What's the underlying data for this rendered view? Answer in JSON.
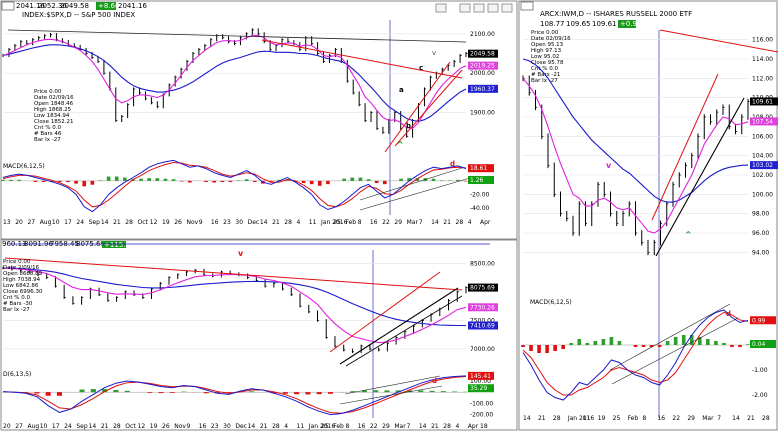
{
  "colors": {
    "price": "#000000",
    "ma_fast": "#e020e0",
    "ma_slow": "#1a1acc",
    "trend": "#e01010",
    "macd_line": "#1a1acc",
    "macd_signal": "#e01010",
    "hist_pos": "#2e9e2e",
    "hist_neg": "#e01010",
    "vline": "#3030c0",
    "axis_badge_red": "#e01010",
    "axis_badge_green": "#10a010",
    "axis_badge_blue": "#2020d0",
    "axis_badge_pink": "#e040e0",
    "axis_badge_black": "#000000",
    "toolbar_green": "#1a9a1a"
  },
  "charts": [
    {
      "id": "spx",
      "header": {
        "title": "INDEX:$SPX,D -- S&P 500 INDEX",
        "fields": [
          "2041.16",
          "2052.36",
          "2049.58",
          "2041.16"
        ],
        "change": "+8.66"
      },
      "info_box": [
        "Price  0.00",
        "Date  02/09/16",
        "Open  1848.46",
        "High  1868.25",
        "Low  1834.94",
        "Close  1852.21",
        "Cnt % 0.0",
        "# Bars 46",
        "Bar Ix -27"
      ],
      "y_ticks": [
        "2100.00",
        "2000.00",
        "1900.00"
      ],
      "badges": [
        {
          "text": "2049.58",
          "kind": "black"
        },
        {
          "text": "2019.25",
          "kind": "pink"
        },
        {
          "text": "1960.37",
          "kind": "blue"
        }
      ],
      "annotations": [
        "v",
        "c",
        "a",
        "b",
        "^"
      ],
      "macd": {
        "label": "MACD(6,12,5)",
        "y_ticks": [
          "0.00",
          "-20.00",
          "-40.00"
        ],
        "badges": [
          {
            "text": "18.61",
            "kind": "red"
          },
          {
            "text": "1.26",
            "kind": "green"
          }
        ],
        "annotation": "d"
      },
      "x_labels": [
        "13",
        "20",
        "27",
        "Aug",
        "10",
        "17",
        "24",
        "Sep",
        "14",
        "21",
        "28",
        "Oct",
        "12",
        "19",
        "26",
        "Nov",
        "9",
        "16",
        "23",
        "30",
        "Dec",
        "14",
        "21",
        "28",
        "4",
        "11",
        "Jan 2016",
        "25",
        "Feb",
        "8",
        "16",
        "22",
        "29",
        "Mar",
        "7",
        "14",
        "21",
        "28",
        "4",
        "Apr"
      ],
      "price": [
        2045,
        2060,
        2070,
        2080,
        2075,
        2085,
        2090,
        2095,
        2098,
        2085,
        2080,
        2072,
        2068,
        2060,
        2050,
        2040,
        2030,
        2000,
        1960,
        1880,
        1890,
        1920,
        1960,
        1950,
        1935,
        1925,
        1915,
        1945,
        1970,
        1990,
        2010,
        2030,
        2050,
        2060,
        2070,
        2085,
        2095,
        2090,
        2080,
        2075,
        2090,
        2100,
        2110,
        2100,
        2080,
        2060,
        2070,
        2085,
        2080,
        2075,
        2060,
        2090,
        2075,
        2050,
        2030,
        2045,
        2060,
        2030,
        1980,
        1950,
        1920,
        1880,
        1900,
        1860,
        1850,
        1880,
        1900,
        1860,
        1840,
        1880,
        1920,
        1960,
        1990,
        2000,
        2010,
        2020,
        2030,
        2045,
        2050
      ],
      "ma_fast": [
        2045,
        2050,
        2058,
        2065,
        2072,
        2078,
        2082,
        2085,
        2086,
        2084,
        2080,
        2074,
        2066,
        2058,
        2045,
        2030,
        2010,
        1985,
        1960,
        1935,
        1925,
        1930,
        1940,
        1945,
        1945,
        1942,
        1938,
        1945,
        1958,
        1975,
        1995,
        2015,
        2032,
        2045,
        2058,
        2068,
        2078,
        2082,
        2083,
        2081,
        2083,
        2090,
        2096,
        2096,
        2090,
        2078,
        2072,
        2075,
        2077,
        2076,
        2068,
        2072,
        2070,
        2060,
        2045,
        2042,
        2045,
        2040,
        2020,
        1995,
        1970,
        1940,
        1925,
        1905,
        1888,
        1880,
        1882,
        1875,
        1862,
        1860,
        1875,
        1900,
        1925,
        1950,
        1970,
        1985,
        1998,
        2012,
        2019
      ],
      "ma_slow": [
        2045,
        2048,
        2052,
        2056,
        2060,
        2064,
        2067,
        2070,
        2072,
        2072,
        2071,
        2069,
        2066,
        2062,
        2057,
        2050,
        2042,
        2032,
        2020,
        2005,
        1990,
        1978,
        1968,
        1962,
        1958,
        1955,
        1952,
        1952,
        1955,
        1958,
        1963,
        1970,
        1978,
        1988,
        1998,
        2008,
        2018,
        2026,
        2032,
        2036,
        2040,
        2045,
        2050,
        2054,
        2056,
        2055,
        2053,
        2053,
        2053,
        2052,
        2050,
        2050,
        2048,
        2045,
        2040,
        2036,
        2033,
        2030,
        2022,
        2010,
        1996,
        1980,
        1965,
        1948,
        1930,
        1915,
        1905,
        1895,
        1885,
        1880,
        1878,
        1882,
        1890,
        1902,
        1915,
        1928,
        1940,
        1952,
        1960
      ],
      "macd_line": [
        5,
        8,
        10,
        8,
        5,
        2,
        -1,
        -5,
        -10,
        -20,
        -38,
        -45,
        -35,
        -20,
        -10,
        -2,
        5,
        12,
        20,
        25,
        28,
        30,
        25,
        20,
        22,
        18,
        12,
        8,
        5,
        10,
        15,
        8,
        -2,
        -5,
        0,
        5,
        -2,
        -10,
        -20,
        -35,
        -42,
        -38,
        -30,
        -20,
        -10,
        -5,
        -15,
        -25,
        -20,
        -10,
        0,
        8,
        15,
        20,
        18,
        20,
        22,
        18
      ],
      "macd_signal": [
        3,
        6,
        8,
        8,
        7,
        4,
        1,
        -3,
        -8,
        -15,
        -28,
        -38,
        -36,
        -28,
        -18,
        -8,
        2,
        8,
        15,
        20,
        24,
        27,
        26,
        23,
        22,
        20,
        15,
        10,
        7,
        9,
        12,
        10,
        3,
        -2,
        -2,
        2,
        0,
        -6,
        -14,
        -26,
        -36,
        -38,
        -34,
        -26,
        -16,
        -8,
        -11,
        -19,
        -20,
        -14,
        -5,
        3,
        10,
        16,
        17,
        19,
        20,
        19
      ]
    },
    {
      "id": "iwm",
      "header": {
        "title": "ARCX:IWM,D -- ISHARES RUSSELL 2000 ETF",
        "fields": [
          "108.77",
          "109.65",
          "109.61"
        ],
        "change": "+0.98"
      },
      "info_box": [
        "Price  0.00",
        "Date  02/09/16",
        "Open  95.13",
        "High  97.13",
        "Low  95.02",
        "Close  95.78",
        "Cnt % 0.0",
        "# Bars -21",
        "Bar Ix -27"
      ],
      "y_ticks": [
        "116.00",
        "114.00",
        "112.00",
        "110.00",
        "108.00",
        "106.00",
        "104.00",
        "102.00",
        "100.00",
        "98.00",
        "96.00",
        "94.00"
      ],
      "badges": [
        {
          "text": "109.61",
          "kind": "black"
        },
        {
          "text": "107.54",
          "kind": "pink"
        },
        {
          "text": "103.02",
          "kind": "blue"
        }
      ],
      "annotations": [
        "v",
        "^"
      ],
      "macd": {
        "label": "MACD(6,12,5)",
        "y_ticks": [
          "1.00",
          "0.00",
          "-1.00",
          "-2.00"
        ],
        "badges": [
          {
            "text": "0.99",
            "kind": "red"
          },
          {
            "text": "0.04",
            "kind": "green"
          }
        ],
        "annotation": "d"
      },
      "x_labels": [
        "14",
        "21",
        "28",
        "Jan 2016",
        "11",
        "19",
        "25",
        "Feb",
        "8",
        "16",
        "22",
        "29",
        "Mar",
        "7",
        "14",
        "21",
        "28"
      ],
      "price": [
        112,
        110.5,
        109,
        106,
        103,
        100,
        98,
        97.5,
        96,
        99,
        97,
        99,
        101,
        100,
        98,
        97,
        98,
        99,
        96,
        95,
        94,
        95,
        97,
        99,
        101,
        102,
        103,
        104,
        106,
        108,
        107.5,
        108.5,
        109,
        107,
        106.5,
        108,
        109.6
      ],
      "ma_fast": [
        112,
        111.2,
        110.2,
        108.8,
        107,
        105,
        103.2,
        101.6,
        100,
        99.6,
        98.8,
        98.8,
        99.4,
        99.6,
        99.2,
        98.6,
        98.4,
        98.6,
        97.8,
        97,
        96.2,
        96,
        96.4,
        97.2,
        98.4,
        99.6,
        100.8,
        102,
        103.6,
        105.2,
        106.2,
        107.2,
        108,
        107.8,
        107.2,
        107.3,
        107.5
      ],
      "ma_slow": [
        114,
        113.8,
        113.4,
        112.8,
        112,
        111,
        110,
        109,
        108,
        107.2,
        106.4,
        105.6,
        105,
        104.4,
        103.8,
        103.2,
        102.6,
        102.2,
        101.6,
        101,
        100.4,
        99.8,
        99.4,
        99.2,
        99.2,
        99.4,
        99.8,
        100.2,
        100.8,
        101.4,
        101.9,
        102.3,
        102.6,
        102.8,
        102.9,
        103,
        103.02
      ],
      "macd_line": [
        -0.3,
        -0.8,
        -1.4,
        -1.9,
        -2.1,
        -2.2,
        -1.9,
        -1.5,
        -1.6,
        -1.3,
        -1.0,
        -0.6,
        -0.7,
        -1.0,
        -1.2,
        -1.3,
        -1.5,
        -1.6,
        -1.2,
        -0.7,
        -0.1,
        0.4,
        0.8,
        1.1,
        1.3,
        1.4,
        1.1,
        0.9,
        0.99
      ],
      "macd_signal": [
        -0.2,
        -0.5,
        -1.0,
        -1.5,
        -1.8,
        -2.0,
        -2.0,
        -1.8,
        -1.7,
        -1.5,
        -1.3,
        -1.0,
        -0.9,
        -1.0,
        -1.1,
        -1.2,
        -1.4,
        -1.5,
        -1.4,
        -1.1,
        -0.6,
        -0.1,
        0.4,
        0.8,
        1.1,
        1.3,
        1.2,
        1.0,
        0.95
      ]
    },
    {
      "id": "nya",
      "header": {
        "title": "",
        "fields": [
          "960.13",
          "8091.96",
          "7958.45",
          "8075.69"
        ],
        "change": "+115.74"
      },
      "info_box": [
        "Price  0.00",
        "Date  2/09/16",
        "Open  8668.89",
        "High  7038.94",
        "Low  6842.86",
        "Close  6996.30",
        "Cnt % 0.0",
        "# Bars -30",
        "Bar Ix -27"
      ],
      "y_ticks": [
        "8500.00",
        "7500.00",
        "7000.00"
      ],
      "badges": [
        {
          "text": "8075.69",
          "kind": "black"
        },
        {
          "text": "7730.26",
          "kind": "pink"
        },
        {
          "text": "7410.69",
          "kind": "blue"
        }
      ],
      "annotations": [
        "v"
      ],
      "macd": {
        "label": "D(6,13,5)",
        "y_ticks": [
          "100.00",
          "-100.00",
          "-200.00"
        ],
        "badges": [
          {
            "text": "145.41",
            "kind": "red"
          },
          {
            "text": "35.29",
            "kind": "green"
          }
        ],
        "annotation": "d"
      },
      "x_labels": [
        "20",
        "27",
        "Aug",
        "10",
        "17",
        "24",
        "Sep",
        "14",
        "21",
        "28",
        "Oct",
        "12",
        "19",
        "26",
        "Nov",
        "9",
        "16",
        "23",
        "30",
        "Dec",
        "14",
        "21",
        "28",
        "4",
        "11",
        "Jan 2016",
        "25",
        "Feb",
        "8",
        "16",
        "22",
        "29",
        "Mar",
        "7",
        "14",
        "21",
        "28",
        "4",
        "Apr",
        "18"
      ],
      "price": [
        8420,
        8400,
        8380,
        8350,
        8300,
        8250,
        8100,
        7900,
        7800,
        7900,
        8050,
        7950,
        7850,
        7900,
        8000,
        7950,
        7900,
        8050,
        8150,
        8250,
        8300,
        8350,
        8380,
        8300,
        8280,
        8350,
        8320,
        8300,
        8250,
        8200,
        8100,
        8150,
        8050,
        7950,
        7750,
        7650,
        7500,
        7200,
        7050,
        6980,
        6950,
        7050,
        7000,
        6980,
        7100,
        7200,
        7300,
        7400,
        7500,
        7600,
        7700,
        7850,
        8000,
        8075
      ],
      "ma_fast": [
        8420,
        8410,
        8398,
        8380,
        8355,
        8322,
        8260,
        8165,
        8080,
        8040,
        8040,
        8020,
        7985,
        7960,
        7965,
        7962,
        7955,
        7985,
        8035,
        8100,
        8160,
        8215,
        8265,
        8285,
        8288,
        8300,
        8305,
        8302,
        8290,
        8268,
        8225,
        8200,
        8160,
        8100,
        8000,
        7900,
        7780,
        7600,
        7440,
        7320,
        7220,
        7180,
        7140,
        7110,
        7120,
        7160,
        7215,
        7275,
        7345,
        7420,
        7500,
        7590,
        7690,
        7730
      ],
      "ma_slow": [
        8420,
        8415,
        8408,
        8398,
        8385,
        8368,
        8345,
        8310,
        8270,
        8235,
        8210,
        8185,
        8158,
        8132,
        8112,
        8095,
        8078,
        8070,
        8070,
        8078,
        8090,
        8105,
        8122,
        8136,
        8148,
        8160,
        8170,
        8178,
        8182,
        8184,
        8180,
        8175,
        8166,
        8150,
        8125,
        8095,
        8055,
        8000,
        7935,
        7865,
        7795,
        7730,
        7668,
        7610,
        7560,
        7520,
        7490,
        7465,
        7445,
        7430,
        7420,
        7414,
        7411,
        7410
      ],
      "macd_line": [
        5,
        0,
        -10,
        -40,
        -120,
        -180,
        -150,
        -80,
        -20,
        40,
        80,
        100,
        90,
        70,
        50,
        40,
        60,
        50,
        20,
        -10,
        -20,
        10,
        30,
        20,
        -10,
        -40,
        -80,
        -130,
        -170,
        -200,
        -190,
        -160,
        -120,
        -80,
        -40,
        0,
        40,
        80,
        110,
        130,
        140,
        145
      ],
      "macd_signal": [
        3,
        1,
        -5,
        -25,
        -80,
        -140,
        -150,
        -110,
        -55,
        5,
        55,
        85,
        90,
        78,
        60,
        48,
        54,
        52,
        32,
        5,
        -10,
        2,
        20,
        20,
        3,
        -22,
        -58,
        -105,
        -148,
        -182,
        -188,
        -172,
        -140,
        -102,
        -60,
        -20,
        20,
        60,
        95,
        118,
        132,
        140
      ]
    }
  ]
}
